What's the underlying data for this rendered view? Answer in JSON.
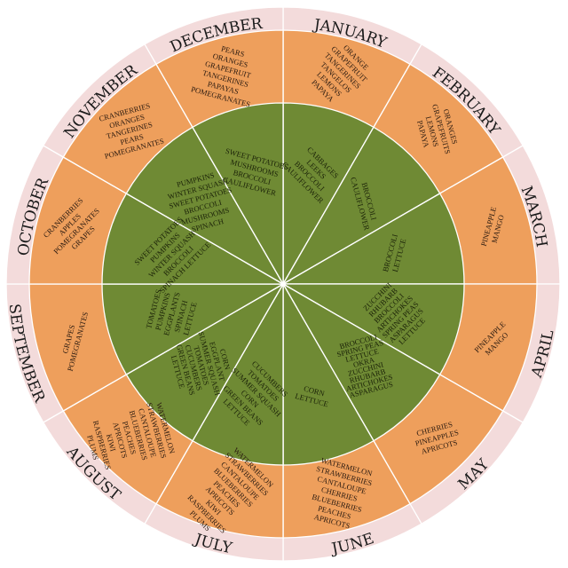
{
  "months": [
    {
      "name": "JANUARY",
      "fruits": [
        "ORANGE",
        "GRAPEFRUIT",
        "TANGERINES",
        "TANGELOS",
        "LEMONS",
        "PAPAYA"
      ],
      "vegetables": [
        "CABBAGES",
        "LEEKS",
        "BROCCOLI",
        "CAULIFLOWER"
      ]
    },
    {
      "name": "FEBRUARY",
      "fruits": [
        "ORANGES",
        "GRAPEFRUITS",
        "LEMONS",
        "PAPAYA"
      ],
      "vegetables": [
        "BROCCOLI",
        "CAULIFLOWER"
      ]
    },
    {
      "name": "MARCH",
      "fruits": [
        "PINEAPPLE",
        "MANGO"
      ],
      "vegetables": [
        "BROCCOLI",
        "LETTUCE"
      ]
    },
    {
      "name": "APRIL",
      "fruits": [
        "PINEAPPLE",
        "MANGO"
      ],
      "vegetables": [
        "ZUCCHINI",
        "RHUBARB",
        "BROCCOLI",
        "ARTICHOKES",
        "SPRING PEAS",
        "ASPARAGUS",
        "LETTUCE"
      ]
    },
    {
      "name": "MAY",
      "fruits": [
        "CHERRIES",
        "PINEAPPLES",
        "APRICOTS"
      ],
      "vegetables": [
        "BROCCOLI",
        "SPRING PEAS",
        "LETTUCE",
        "OKRA",
        "ZUCCHINI",
        "RHUBARB",
        "ARTICHOKES",
        "ASPARAGUS"
      ]
    },
    {
      "name": "JUNE",
      "fruits": [
        "WATERMELON",
        "STRAWBERRIES",
        "CANTALOUPE",
        "CHERRIES",
        "BLUEBERRIES",
        "PEACHES",
        "APRICOTS"
      ],
      "vegetables": [
        "CORN",
        "LETTUCE"
      ]
    },
    {
      "name": "JULY",
      "fruits": [
        "WATERMELON",
        "STRAWBERRIES",
        "CANTALOUPE",
        "BLUEBERRIES",
        "PEACHES",
        "APRICOTS",
        "KIWI",
        "RASPBERRIES",
        "PLUMS"
      ],
      "vegetables": [
        "CUCUMBERS",
        "TOMATOES",
        "SUMMER SQUASH",
        "CORN",
        "GREEN BEANS",
        "LETTUCE"
      ]
    },
    {
      "name": "AUGUST",
      "fruits": [
        "WATERMELON",
        "STRAWBERRIES",
        "CANTALOUPE",
        "BLUEBERRIES",
        "PEACHES",
        "APRICOTS",
        "KIWI",
        "RASPBERRIES",
        "PLUMS"
      ],
      "vegetables": [
        "CORN",
        "EGGPLANT",
        "SUMMER SQUASH",
        "TOMATOES",
        "CUCUMBERS",
        "GREEN BEANS",
        "LETTUCE"
      ]
    },
    {
      "name": "SEPTEMBER",
      "fruits": [
        "GRAPES",
        "POMEGRANATES"
      ],
      "vegetables": [
        "TOMATOES",
        "PUMPKINS",
        "EGGPLANTS",
        "SPINACH",
        "LETTUCE"
      ]
    },
    {
      "name": "OCTOBER",
      "fruits": [
        "CRANBERRIES",
        "APPLES",
        "POMEGRANATES",
        "GRAPES"
      ],
      "vegetables": [
        "SWEET POTATOES",
        "PUMPKINS",
        "WINTER SQUASH",
        "BROCCOLI",
        "SPINACH LETTUCE"
      ]
    },
    {
      "name": "NOVEMBER",
      "fruits": [
        "CRANBERRIES",
        "ORANGES",
        "TANGERINES",
        "PEARS",
        "POMEGRANATES"
      ],
      "vegetables": [
        "PUMPKINS",
        "WINTER SQUASH",
        "SWEET POTATOES",
        "BROCCOLI",
        "MUSHROOMS",
        "SPINACH"
      ]
    },
    {
      "name": "DECEMBER",
      "fruits": [
        "PEARS",
        "ORANGES",
        "GRAPEFRUIT",
        "TANGERINES",
        "PAPAYAS",
        "POMEGRANATES"
      ],
      "vegetables": [
        "SWEET POTATOES",
        "MUSHROOMS",
        "BROCCOLI",
        "CAULIFLOWER"
      ]
    }
  ]
}
